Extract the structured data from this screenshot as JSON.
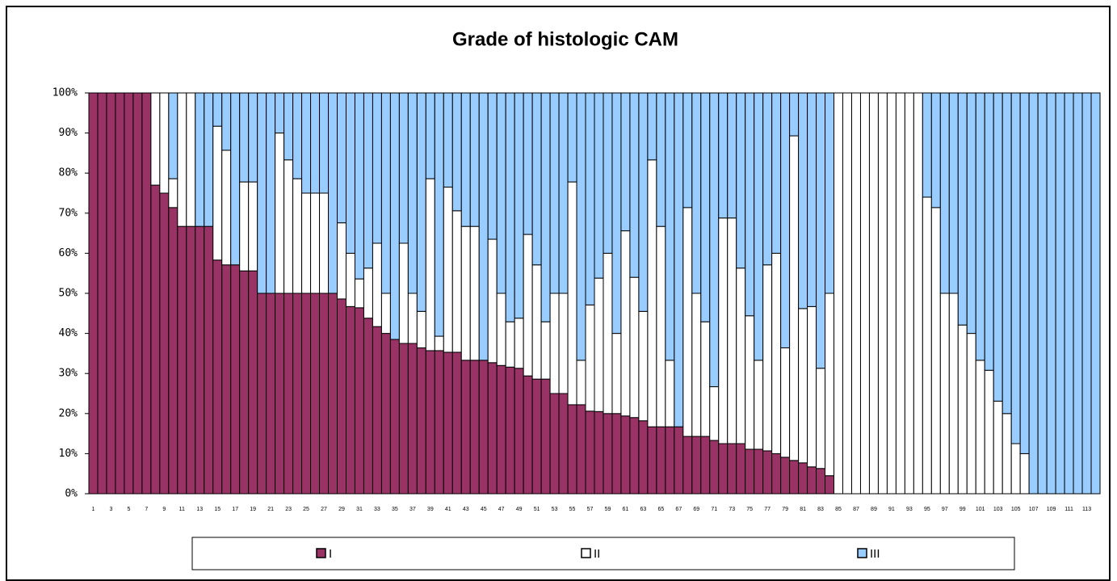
{
  "chart_data": {
    "type": "stacked_bar_100",
    "title": "Grade of histologic CAM",
    "categories": [
      "1",
      null,
      "3",
      null,
      "5",
      null,
      "7",
      null,
      "9",
      null,
      "11",
      null,
      "13",
      null,
      "15",
      null,
      "17",
      null,
      "19",
      null,
      "21",
      null,
      "23",
      null,
      "25",
      null,
      "27",
      null,
      "29",
      null,
      "31",
      null,
      "33",
      null,
      "35",
      null,
      "37",
      null,
      "39",
      null,
      "41",
      null,
      "43",
      null,
      "45",
      null,
      "47",
      null,
      "49",
      null,
      "51",
      null,
      "53",
      null,
      "55",
      null,
      "57",
      null,
      "59",
      null,
      "61",
      null,
      "63",
      null,
      "65",
      null,
      "67",
      null,
      "69",
      null,
      "71",
      null,
      "73",
      null,
      "75",
      null,
      "77",
      null,
      "79",
      null,
      "81",
      null,
      "83",
      null,
      "85",
      null,
      "87",
      null,
      "89",
      null,
      "91",
      null,
      "93",
      null,
      "95",
      null,
      "97",
      null,
      "99",
      null,
      "101",
      null,
      "103",
      null,
      "105",
      null,
      "107",
      null,
      "109",
      null,
      "111",
      null,
      "113",
      null
    ],
    "series": [
      {
        "name": "I",
        "color": "#993366",
        "values": [
          100,
          100,
          100,
          100,
          100,
          100,
          100,
          77,
          75,
          71.4,
          66.7,
          66.7,
          66.7,
          66.7,
          58.3,
          57.1,
          57.1,
          55.6,
          55.6,
          50,
          50,
          50,
          50,
          50,
          50,
          50,
          50,
          50,
          48.6,
          46.7,
          46.4,
          43.8,
          41.7,
          40,
          38.5,
          37.5,
          37.5,
          36.4,
          35.7,
          35.7,
          35.3,
          35.3,
          33.3,
          33.3,
          33.3,
          32.7,
          32,
          31.6,
          31.3,
          29.4,
          28.6,
          28.6,
          25,
          25,
          22.2,
          22.2,
          20.6,
          20.5,
          20,
          20,
          19.4,
          19,
          18.2,
          16.7,
          16.7,
          16.7,
          16.7,
          14.3,
          14.3,
          14.3,
          13.3,
          12.5,
          12.5,
          12.5,
          11.1,
          11.1,
          10.7,
          10,
          9.1,
          8.3,
          7.7,
          6.7,
          6.3,
          4.5,
          0,
          0,
          0,
          0,
          0,
          0,
          0,
          0,
          0,
          0,
          0,
          0,
          0,
          0,
          0,
          0,
          0,
          0,
          0,
          0,
          0,
          0,
          0,
          0,
          0,
          0,
          0,
          0,
          0,
          0
        ]
      },
      {
        "name": "II",
        "color": "#ffffff",
        "values": [
          0,
          0,
          0,
          0,
          0,
          0,
          0,
          23,
          25,
          7.2,
          33.3,
          33.3,
          0,
          0,
          33.4,
          28.6,
          0,
          22.2,
          22.2,
          0,
          0,
          40,
          33.3,
          28.6,
          25,
          25,
          25,
          0,
          19,
          13.3,
          7.2,
          12.5,
          20.8,
          10,
          0,
          25,
          12.5,
          9.1,
          42.9,
          3.6,
          41.2,
          35.3,
          33.4,
          33.4,
          0,
          30.8,
          18,
          11.3,
          12.5,
          35.3,
          28.5,
          14.3,
          25,
          25,
          55.6,
          11.1,
          26.5,
          33.3,
          40,
          20,
          46.2,
          35,
          27.3,
          66.6,
          50,
          16.6,
          0,
          57.1,
          35.7,
          28.6,
          13.4,
          56.3,
          56.3,
          43.8,
          33.3,
          22.2,
          46.4,
          50,
          27.3,
          81,
          38.5,
          40,
          25,
          45.5,
          100,
          100,
          100,
          100,
          100,
          100,
          100,
          100,
          100,
          100,
          74,
          71.4,
          50,
          50,
          42.1,
          40,
          33.3,
          30.8,
          23.1,
          20,
          12.5,
          10,
          0,
          0,
          0,
          0,
          0,
          0,
          0,
          0
        ]
      },
      {
        "name": "III",
        "color": "#99ccff",
        "values": [
          0,
          0,
          0,
          0,
          0,
          0,
          0,
          0,
          0,
          21.4,
          0,
          0,
          33.3,
          33.3,
          8.3,
          14.3,
          42.9,
          22.2,
          22.2,
          50,
          50,
          10,
          16.7,
          21.4,
          25,
          25,
          25,
          50,
          32.4,
          40,
          46.4,
          43.7,
          37.5,
          50,
          61.5,
          37.5,
          50,
          54.5,
          21.4,
          60.7,
          23.5,
          29.4,
          33.3,
          33.3,
          66.7,
          36.5,
          50,
          57.1,
          56.2,
          35.3,
          42.9,
          57.1,
          50,
          50,
          22.2,
          66.7,
          52.9,
          46.2,
          40,
          60,
          34.4,
          46,
          54.5,
          16.7,
          33.3,
          66.7,
          83.3,
          28.6,
          50,
          57.1,
          73.3,
          31.2,
          31.2,
          43.7,
          55.6,
          66.7,
          42.9,
          40,
          63.6,
          10.7,
          53.8,
          53.3,
          68.7,
          50,
          0,
          0,
          0,
          0,
          0,
          0,
          0,
          0,
          0,
          0,
          26,
          28.6,
          50,
          50,
          57.9,
          60,
          66.7,
          69.2,
          76.9,
          80,
          87.5,
          90,
          100,
          100,
          100,
          100,
          100,
          100,
          100,
          100
        ]
      }
    ],
    "ylim": [
      0,
      100
    ],
    "yticks": [
      {
        "value": 0,
        "label": "0%"
      },
      {
        "value": 10,
        "label": "10%"
      },
      {
        "value": 20,
        "label": "20%"
      },
      {
        "value": 30,
        "label": "30%"
      },
      {
        "value": 40,
        "label": "40%"
      },
      {
        "value": 50,
        "label": "50%"
      },
      {
        "value": 60,
        "label": "60%"
      },
      {
        "value": 70,
        "label": "70%"
      },
      {
        "value": 80,
        "label": "80%"
      },
      {
        "value": 90,
        "label": "90%"
      },
      {
        "value": 100,
        "label": "100%"
      }
    ],
    "legend": "bottom"
  }
}
